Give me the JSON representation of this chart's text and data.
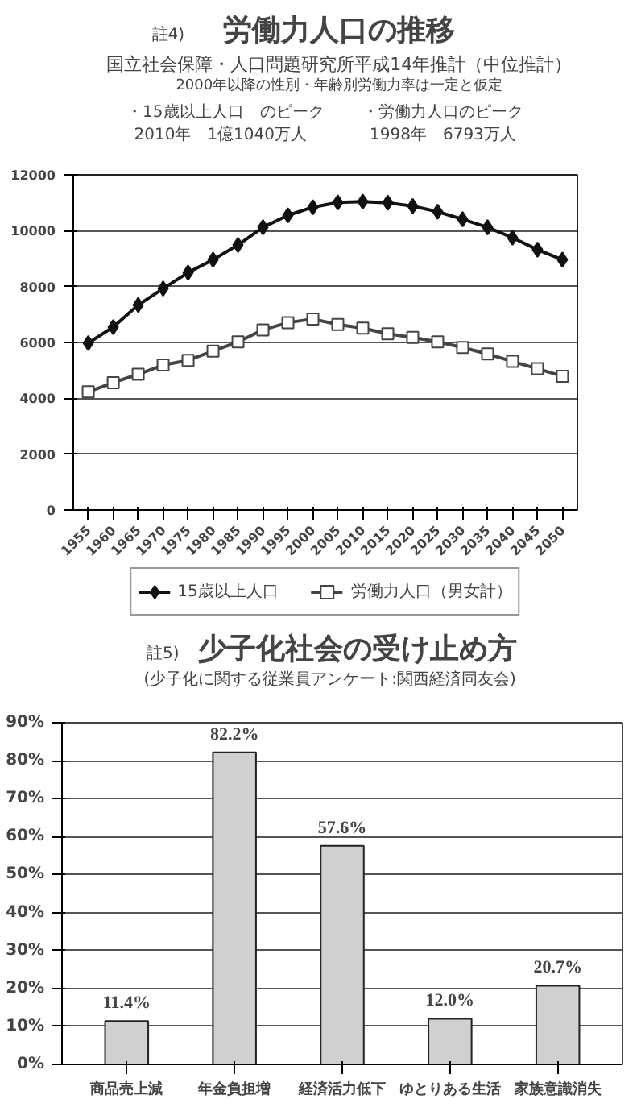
{
  "chart_data": [
    {
      "type": "line",
      "title": "労働力人口の推移",
      "subtitle": "国立社会保障・人口問題研究所平成14年推計（中位推計）",
      "annotations": [
        "註4)",
        "2000年以降の性別・年齢別労働力率は一定と仮定",
        "・15歳以上人口　のピーク",
        "2010年　1億1040万人",
        "・労働力人口のピーク",
        "1998年　6793万人"
      ],
      "x": [
        1955,
        1960,
        1965,
        1970,
        1975,
        1980,
        1985,
        1990,
        1995,
        2000,
        2005,
        2010,
        2015,
        2020,
        2025,
        2030,
        2035,
        2040,
        2045,
        2050
      ],
      "series": [
        {
          "name": "15歳以上人口",
          "color": "#111111",
          "marker": "diamond",
          "values": [
            5980,
            6550,
            7340,
            7930,
            8500,
            8960,
            9490,
            10120,
            10550,
            10840,
            11010,
            11040,
            11000,
            10880,
            10680,
            10410,
            10120,
            9750,
            9320,
            8960
          ]
        },
        {
          "name": "労働力人口（男女計）",
          "color": "#444444",
          "marker": "square",
          "values": [
            4230,
            4560,
            4860,
            5190,
            5360,
            5690,
            6020,
            6450,
            6710,
            6840,
            6640,
            6510,
            6310,
            6180,
            6020,
            5820,
            5590,
            5320,
            5060,
            4790
          ]
        }
      ],
      "xlim": [
        1952,
        2053
      ],
      "xticks": [
        1955,
        1960,
        1965,
        1970,
        1975,
        1980,
        1985,
        1990,
        1995,
        2000,
        2005,
        2010,
        2015,
        2020,
        2025,
        2030,
        2035,
        2040,
        2045,
        2050
      ],
      "ylim": [
        0,
        12000
      ],
      "yticks": [
        0,
        2000,
        4000,
        6000,
        8000,
        10000,
        12000
      ],
      "grid": "y",
      "legend": "bottom",
      "line_style": "solid"
    },
    {
      "type": "bar",
      "title": "少子化社会の受け止め方",
      "subtitle": "(少子化に関する従業員アンケート:関西経済同友会)",
      "annotations": [
        "註5)"
      ],
      "categories": [
        "商品売上減",
        "年金負担増",
        "経済活力低下",
        "ゆとりある生活",
        "家族意識消失"
      ],
      "values": [
        11.4,
        82.2,
        57.6,
        12.0,
        20.7
      ],
      "value_labels": [
        "11.4%",
        "82.2%",
        "57.6%",
        "12.0%",
        "20.7%"
      ],
      "color": "#d0d0d0",
      "ylim": [
        0,
        90
      ],
      "yticks": [
        {
          "value": 0,
          "label": "0%"
        },
        {
          "value": 10,
          "label": "10%"
        },
        {
          "value": 20,
          "label": "20%"
        },
        {
          "value": 30,
          "label": "30%"
        },
        {
          "value": 40,
          "label": "40%"
        },
        {
          "value": 50,
          "label": "50%"
        },
        {
          "value": 60,
          "label": "60%"
        },
        {
          "value": 70,
          "label": "70%"
        },
        {
          "value": 80,
          "label": "80%"
        },
        {
          "value": 90,
          "label": "90%"
        }
      ],
      "grid": "y"
    }
  ]
}
